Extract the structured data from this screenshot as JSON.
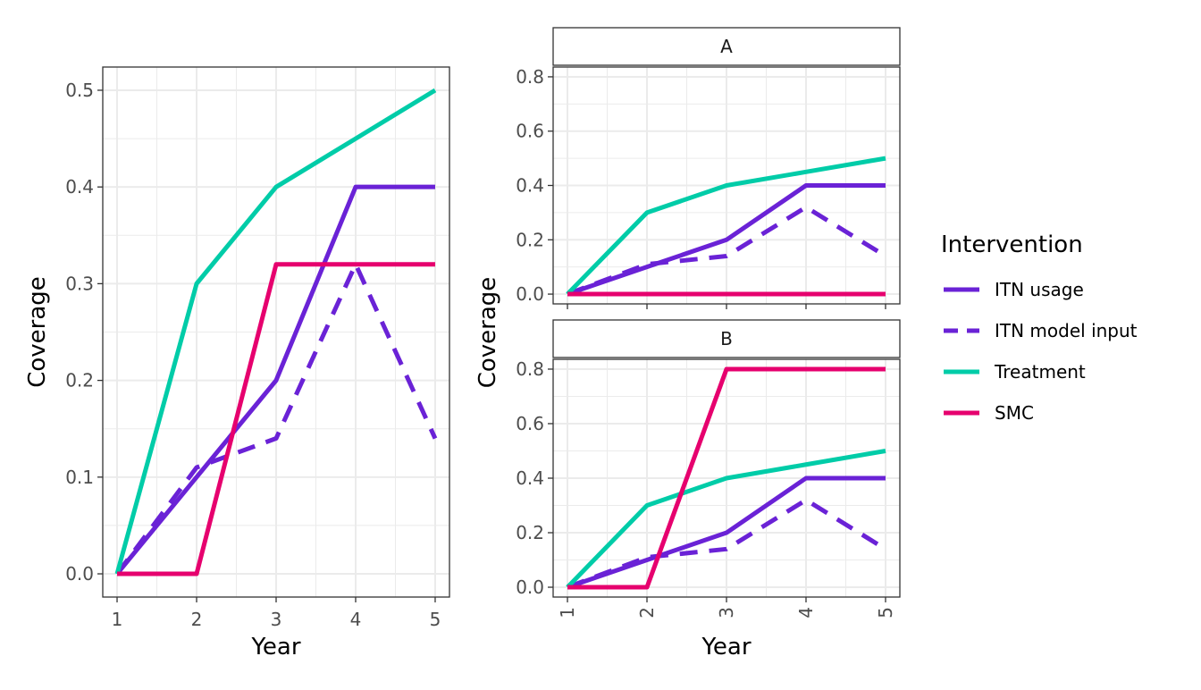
{
  "chart_data": [
    {
      "type": "line",
      "id": "overall",
      "xlabel": "Year",
      "ylabel": "Coverage",
      "x": [
        1,
        2,
        3,
        4,
        5
      ],
      "xlim": [
        0.82,
        5.18
      ],
      "ylim": [
        -0.024,
        0.524
      ],
      "yticks": [
        0.0,
        0.1,
        0.2,
        0.3,
        0.4,
        0.5
      ],
      "ytick_labels": [
        "0.0",
        "0.1",
        "0.2",
        "0.3",
        "0.4",
        "0.5"
      ],
      "xtick_labels": [
        "1",
        "2",
        "3",
        "4",
        "5"
      ],
      "grid": true,
      "series": [
        {
          "name": "ITN usage",
          "key": "itn_usage",
          "values": [
            0.0,
            0.1,
            0.2,
            0.4,
            0.4
          ]
        },
        {
          "name": "ITN model input",
          "key": "itn_model_input",
          "values": [
            0.0,
            0.11,
            0.14,
            0.32,
            0.14
          ]
        },
        {
          "name": "Treatment",
          "key": "treatment",
          "values": [
            0.0,
            0.3,
            0.4,
            0.45,
            0.5
          ]
        },
        {
          "name": "SMC",
          "key": "smc",
          "values": [
            0.0,
            0.0,
            0.32,
            0.32,
            0.32
          ]
        }
      ]
    },
    {
      "type": "line",
      "id": "facet-a",
      "facet_label": "A",
      "x": [
        1,
        2,
        3,
        4,
        5
      ],
      "xlim": [
        0.82,
        5.18
      ],
      "ylim": [
        -0.036,
        0.836
      ],
      "yticks": [
        0.0,
        0.2,
        0.4,
        0.6,
        0.8
      ],
      "ytick_labels": [
        "0.0",
        "0.2",
        "0.4",
        "0.6",
        "0.8"
      ],
      "grid": true,
      "series": [
        {
          "name": "ITN usage",
          "key": "itn_usage",
          "values": [
            0.0,
            0.1,
            0.2,
            0.4,
            0.4
          ]
        },
        {
          "name": "ITN model input",
          "key": "itn_model_input",
          "values": [
            0.0,
            0.11,
            0.14,
            0.32,
            0.14
          ]
        },
        {
          "name": "Treatment",
          "key": "treatment",
          "values": [
            0.0,
            0.3,
            0.4,
            0.45,
            0.5
          ]
        },
        {
          "name": "SMC",
          "key": "smc",
          "values": [
            0.0,
            0.0,
            0.0,
            0.0,
            0.0
          ]
        }
      ]
    },
    {
      "type": "line",
      "id": "facet-b",
      "facet_label": "B",
      "xlabel": "Year",
      "x": [
        1,
        2,
        3,
        4,
        5
      ],
      "xlim": [
        0.82,
        5.18
      ],
      "ylim": [
        -0.036,
        0.836
      ],
      "yticks": [
        0.0,
        0.2,
        0.4,
        0.6,
        0.8
      ],
      "ytick_labels": [
        "0.0",
        "0.2",
        "0.4",
        "0.6",
        "0.8"
      ],
      "xtick_labels": [
        "1",
        "2",
        "3",
        "4",
        "5"
      ],
      "xtick_rotation": "vertical",
      "grid": true,
      "series": [
        {
          "name": "ITN usage",
          "key": "itn_usage",
          "values": [
            0.0,
            0.1,
            0.2,
            0.4,
            0.4
          ]
        },
        {
          "name": "ITN model input",
          "key": "itn_model_input",
          "values": [
            0.0,
            0.11,
            0.14,
            0.32,
            0.14
          ]
        },
        {
          "name": "Treatment",
          "key": "treatment",
          "values": [
            0.0,
            0.3,
            0.4,
            0.45,
            0.5
          ]
        },
        {
          "name": "SMC",
          "key": "smc",
          "values": [
            0.0,
            0.0,
            0.8,
            0.8,
            0.8
          ]
        }
      ]
    }
  ],
  "facets_ylabel": "Coverage",
  "legend": {
    "title": "Intervention",
    "placement": "right",
    "items": [
      {
        "key": "itn_usage",
        "label": "ITN usage",
        "color": "#6a22d6",
        "dash": "solid"
      },
      {
        "key": "itn_model_input",
        "label": "ITN model input",
        "color": "#6a22d6",
        "dash": "dashed"
      },
      {
        "key": "treatment",
        "label": "Treatment",
        "color": "#00cca8",
        "dash": "solid"
      },
      {
        "key": "smc",
        "label": "SMC",
        "color": "#e6006e",
        "dash": "solid"
      }
    ]
  }
}
